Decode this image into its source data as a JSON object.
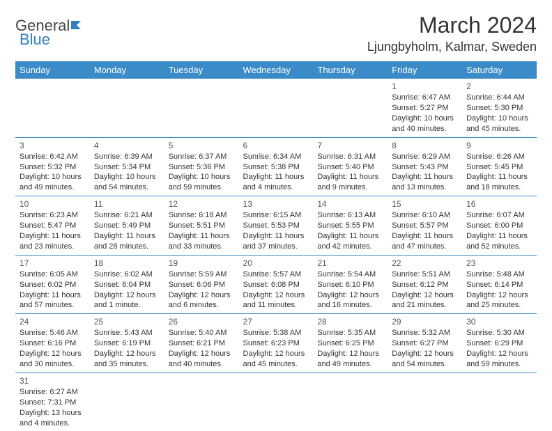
{
  "header": {
    "logo_general": "General",
    "logo_blue": "Blue",
    "month_title": "March 2024",
    "location": "Ljungbyholm, Kalmar, Sweden"
  },
  "style": {
    "header_bg": "#3b8bc8",
    "header_fg": "#ffffff",
    "row_border": "#3b8bc8",
    "text_color": "#333333",
    "title_fontsize": 32,
    "location_fontsize": 18,
    "dayhead_fontsize": 13,
    "cell_fontsize": 11,
    "logo_accent": "#2f7fc1"
  },
  "day_headers": [
    "Sunday",
    "Monday",
    "Tuesday",
    "Wednesday",
    "Thursday",
    "Friday",
    "Saturday"
  ],
  "weeks": [
    [
      null,
      null,
      null,
      null,
      null,
      {
        "n": "1",
        "sr": "Sunrise: 6:47 AM",
        "ss": "Sunset: 5:27 PM",
        "d1": "Daylight: 10 hours",
        "d2": "and 40 minutes."
      },
      {
        "n": "2",
        "sr": "Sunrise: 6:44 AM",
        "ss": "Sunset: 5:30 PM",
        "d1": "Daylight: 10 hours",
        "d2": "and 45 minutes."
      }
    ],
    [
      {
        "n": "3",
        "sr": "Sunrise: 6:42 AM",
        "ss": "Sunset: 5:32 PM",
        "d1": "Daylight: 10 hours",
        "d2": "and 49 minutes."
      },
      {
        "n": "4",
        "sr": "Sunrise: 6:39 AM",
        "ss": "Sunset: 5:34 PM",
        "d1": "Daylight: 10 hours",
        "d2": "and 54 minutes."
      },
      {
        "n": "5",
        "sr": "Sunrise: 6:37 AM",
        "ss": "Sunset: 5:36 PM",
        "d1": "Daylight: 10 hours",
        "d2": "and 59 minutes."
      },
      {
        "n": "6",
        "sr": "Sunrise: 6:34 AM",
        "ss": "Sunset: 5:38 PM",
        "d1": "Daylight: 11 hours",
        "d2": "and 4 minutes."
      },
      {
        "n": "7",
        "sr": "Sunrise: 6:31 AM",
        "ss": "Sunset: 5:40 PM",
        "d1": "Daylight: 11 hours",
        "d2": "and 9 minutes."
      },
      {
        "n": "8",
        "sr": "Sunrise: 6:29 AM",
        "ss": "Sunset: 5:43 PM",
        "d1": "Daylight: 11 hours",
        "d2": "and 13 minutes."
      },
      {
        "n": "9",
        "sr": "Sunrise: 6:26 AM",
        "ss": "Sunset: 5:45 PM",
        "d1": "Daylight: 11 hours",
        "d2": "and 18 minutes."
      }
    ],
    [
      {
        "n": "10",
        "sr": "Sunrise: 6:23 AM",
        "ss": "Sunset: 5:47 PM",
        "d1": "Daylight: 11 hours",
        "d2": "and 23 minutes."
      },
      {
        "n": "11",
        "sr": "Sunrise: 6:21 AM",
        "ss": "Sunset: 5:49 PM",
        "d1": "Daylight: 11 hours",
        "d2": "and 28 minutes."
      },
      {
        "n": "12",
        "sr": "Sunrise: 6:18 AM",
        "ss": "Sunset: 5:51 PM",
        "d1": "Daylight: 11 hours",
        "d2": "and 33 minutes."
      },
      {
        "n": "13",
        "sr": "Sunrise: 6:15 AM",
        "ss": "Sunset: 5:53 PM",
        "d1": "Daylight: 11 hours",
        "d2": "and 37 minutes."
      },
      {
        "n": "14",
        "sr": "Sunrise: 6:13 AM",
        "ss": "Sunset: 5:55 PM",
        "d1": "Daylight: 11 hours",
        "d2": "and 42 minutes."
      },
      {
        "n": "15",
        "sr": "Sunrise: 6:10 AM",
        "ss": "Sunset: 5:57 PM",
        "d1": "Daylight: 11 hours",
        "d2": "and 47 minutes."
      },
      {
        "n": "16",
        "sr": "Sunrise: 6:07 AM",
        "ss": "Sunset: 6:00 PM",
        "d1": "Daylight: 11 hours",
        "d2": "and 52 minutes."
      }
    ],
    [
      {
        "n": "17",
        "sr": "Sunrise: 6:05 AM",
        "ss": "Sunset: 6:02 PM",
        "d1": "Daylight: 11 hours",
        "d2": "and 57 minutes."
      },
      {
        "n": "18",
        "sr": "Sunrise: 6:02 AM",
        "ss": "Sunset: 6:04 PM",
        "d1": "Daylight: 12 hours",
        "d2": "and 1 minute."
      },
      {
        "n": "19",
        "sr": "Sunrise: 5:59 AM",
        "ss": "Sunset: 6:06 PM",
        "d1": "Daylight: 12 hours",
        "d2": "and 6 minutes."
      },
      {
        "n": "20",
        "sr": "Sunrise: 5:57 AM",
        "ss": "Sunset: 6:08 PM",
        "d1": "Daylight: 12 hours",
        "d2": "and 11 minutes."
      },
      {
        "n": "21",
        "sr": "Sunrise: 5:54 AM",
        "ss": "Sunset: 6:10 PM",
        "d1": "Daylight: 12 hours",
        "d2": "and 16 minutes."
      },
      {
        "n": "22",
        "sr": "Sunrise: 5:51 AM",
        "ss": "Sunset: 6:12 PM",
        "d1": "Daylight: 12 hours",
        "d2": "and 21 minutes."
      },
      {
        "n": "23",
        "sr": "Sunrise: 5:48 AM",
        "ss": "Sunset: 6:14 PM",
        "d1": "Daylight: 12 hours",
        "d2": "and 25 minutes."
      }
    ],
    [
      {
        "n": "24",
        "sr": "Sunrise: 5:46 AM",
        "ss": "Sunset: 6:16 PM",
        "d1": "Daylight: 12 hours",
        "d2": "and 30 minutes."
      },
      {
        "n": "25",
        "sr": "Sunrise: 5:43 AM",
        "ss": "Sunset: 6:19 PM",
        "d1": "Daylight: 12 hours",
        "d2": "and 35 minutes."
      },
      {
        "n": "26",
        "sr": "Sunrise: 5:40 AM",
        "ss": "Sunset: 6:21 PM",
        "d1": "Daylight: 12 hours",
        "d2": "and 40 minutes."
      },
      {
        "n": "27",
        "sr": "Sunrise: 5:38 AM",
        "ss": "Sunset: 6:23 PM",
        "d1": "Daylight: 12 hours",
        "d2": "and 45 minutes."
      },
      {
        "n": "28",
        "sr": "Sunrise: 5:35 AM",
        "ss": "Sunset: 6:25 PM",
        "d1": "Daylight: 12 hours",
        "d2": "and 49 minutes."
      },
      {
        "n": "29",
        "sr": "Sunrise: 5:32 AM",
        "ss": "Sunset: 6:27 PM",
        "d1": "Daylight: 12 hours",
        "d2": "and 54 minutes."
      },
      {
        "n": "30",
        "sr": "Sunrise: 5:30 AM",
        "ss": "Sunset: 6:29 PM",
        "d1": "Daylight: 12 hours",
        "d2": "and 59 minutes."
      }
    ],
    [
      {
        "n": "31",
        "sr": "Sunrise: 6:27 AM",
        "ss": "Sunset: 7:31 PM",
        "d1": "Daylight: 13 hours",
        "d2": "and 4 minutes."
      },
      null,
      null,
      null,
      null,
      null,
      null
    ]
  ]
}
